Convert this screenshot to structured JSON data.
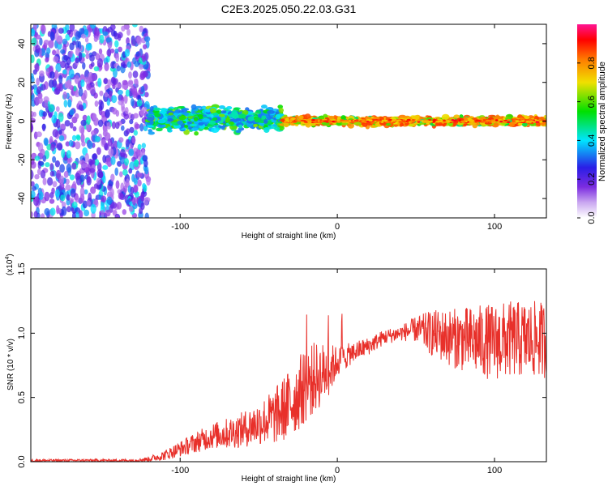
{
  "figure_title": "C2E3.2025.050.22.03.G31",
  "chart_data": [
    {
      "type": "heatmap",
      "title": "C2E3.2025.050.22.03.G31",
      "xlabel": "Height of straight line (km)",
      "ylabel": "Frequency (Hz)",
      "xlim": [
        -195,
        133
      ],
      "ylim": [
        -50,
        50
      ],
      "xticks": [
        -100,
        0,
        100
      ],
      "xtick_labels": [
        "-100",
        "0",
        "100"
      ],
      "yticks": [
        -40,
        -20,
        0,
        20,
        40
      ],
      "ytick_labels": [
        "-40",
        "-20",
        "0",
        "20",
        "40"
      ],
      "colorbar": {
        "label": "Normalized spectral amplitude",
        "range": [
          0.0,
          1.0
        ],
        "ticks": [
          0.0,
          0.2,
          0.4,
          0.6,
          0.8
        ],
        "tick_labels": [
          "0.0",
          "0.2",
          "0.4",
          "0.6",
          "0.8"
        ],
        "colormap": [
          "#ffffff",
          "#8a2be2",
          "#2a1ee6",
          "#00e5ff",
          "#00e000",
          "#f0e000",
          "#ff7a00",
          "#ff0000",
          "#ff1493"
        ]
      },
      "regions": [
        {
          "x": [
            -195,
            -120
          ],
          "freq_band": [
            -50,
            50
          ],
          "amplitude": [
            0.05,
            0.3
          ],
          "description_color": "purple noise"
        },
        {
          "x": [
            -120,
            -35
          ],
          "freq_band": [
            -8,
            8
          ],
          "amplitude": [
            0.2,
            0.5
          ],
          "center_freq": 1
        },
        {
          "x": [
            -35,
            133
          ],
          "freq_band": [
            -3,
            3
          ],
          "amplitude": [
            0.3,
            0.8
          ],
          "center_freq": 0
        }
      ],
      "grid": false
    },
    {
      "type": "line",
      "xlabel": "Height of straight line (km)",
      "ylabel": "SNR (10 * v/v)",
      "multiplier_label": "(x10",
      "multiplier_exp": "4",
      "xlim": [
        -195,
        133
      ],
      "ylim": [
        0,
        1.5
      ],
      "xticks": [
        -100,
        0,
        100
      ],
      "xtick_labels": [
        "-100",
        "0",
        "100"
      ],
      "yticks": [
        0.0,
        0.5,
        1.0,
        1.5
      ],
      "ytick_labels": [
        "0.0",
        "0.5",
        "1.0",
        "1.5"
      ],
      "series_color": "#e8302a",
      "envelope": {
        "x": [
          -195,
          -130,
          -120,
          -110,
          -100,
          -90,
          -80,
          -70,
          -60,
          -50,
          -40,
          -30,
          -20,
          -15,
          -10,
          -5,
          0,
          10,
          20,
          30,
          40,
          50,
          60,
          70,
          80,
          90,
          100,
          110,
          120,
          133
        ],
        "mean": [
          0.01,
          0.01,
          0.02,
          0.05,
          0.1,
          0.15,
          0.2,
          0.22,
          0.25,
          0.3,
          0.35,
          0.45,
          0.6,
          0.65,
          0.68,
          0.72,
          0.78,
          0.85,
          0.9,
          0.97,
          1.0,
          1.03,
          1.0,
          0.97,
          0.95,
          0.94,
          0.93,
          0.95,
          0.95,
          0.95
        ],
        "amp": [
          0.01,
          0.01,
          0.02,
          0.04,
          0.06,
          0.08,
          0.1,
          0.12,
          0.14,
          0.17,
          0.22,
          0.28,
          0.3,
          0.28,
          0.25,
          0.2,
          0.12,
          0.08,
          0.07,
          0.06,
          0.06,
          0.1,
          0.18,
          0.22,
          0.25,
          0.28,
          0.3,
          0.3,
          0.3,
          0.3
        ]
      },
      "grid": false
    }
  ]
}
